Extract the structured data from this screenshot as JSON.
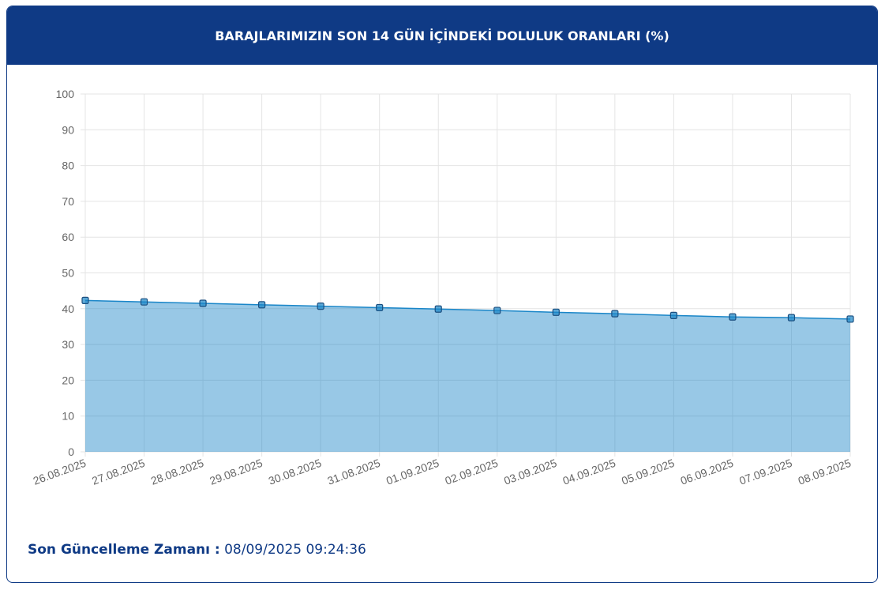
{
  "chart_data": {
    "type": "area",
    "title": "BARAJLARIMIZIN SON 14 GÜN İÇİNDEKİ DOLULUK ORANLARI (%)",
    "categories": [
      "26.08.2025",
      "27.08.2025",
      "28.08.2025",
      "29.08.2025",
      "30.08.2025",
      "31.08.2025",
      "01.09.2025",
      "02.09.2025",
      "03.09.2025",
      "04.09.2025",
      "05.09.2025",
      "06.09.2025",
      "07.09.2025",
      "08.09.2025"
    ],
    "values": [
      42.3,
      41.9,
      41.5,
      41.1,
      40.7,
      40.3,
      39.9,
      39.5,
      39.0,
      38.6,
      38.1,
      37.7,
      37.5,
      37.1
    ],
    "color": "#1a86c8",
    "ylim": [
      0,
      100
    ],
    "yticks": [
      0,
      10,
      20,
      30,
      40,
      50,
      60,
      70,
      80,
      90,
      100
    ],
    "grid": true
  },
  "footer": {
    "label": "Son Güncelleme Zamanı :",
    "value": "08/09/2025 09:24:36"
  }
}
